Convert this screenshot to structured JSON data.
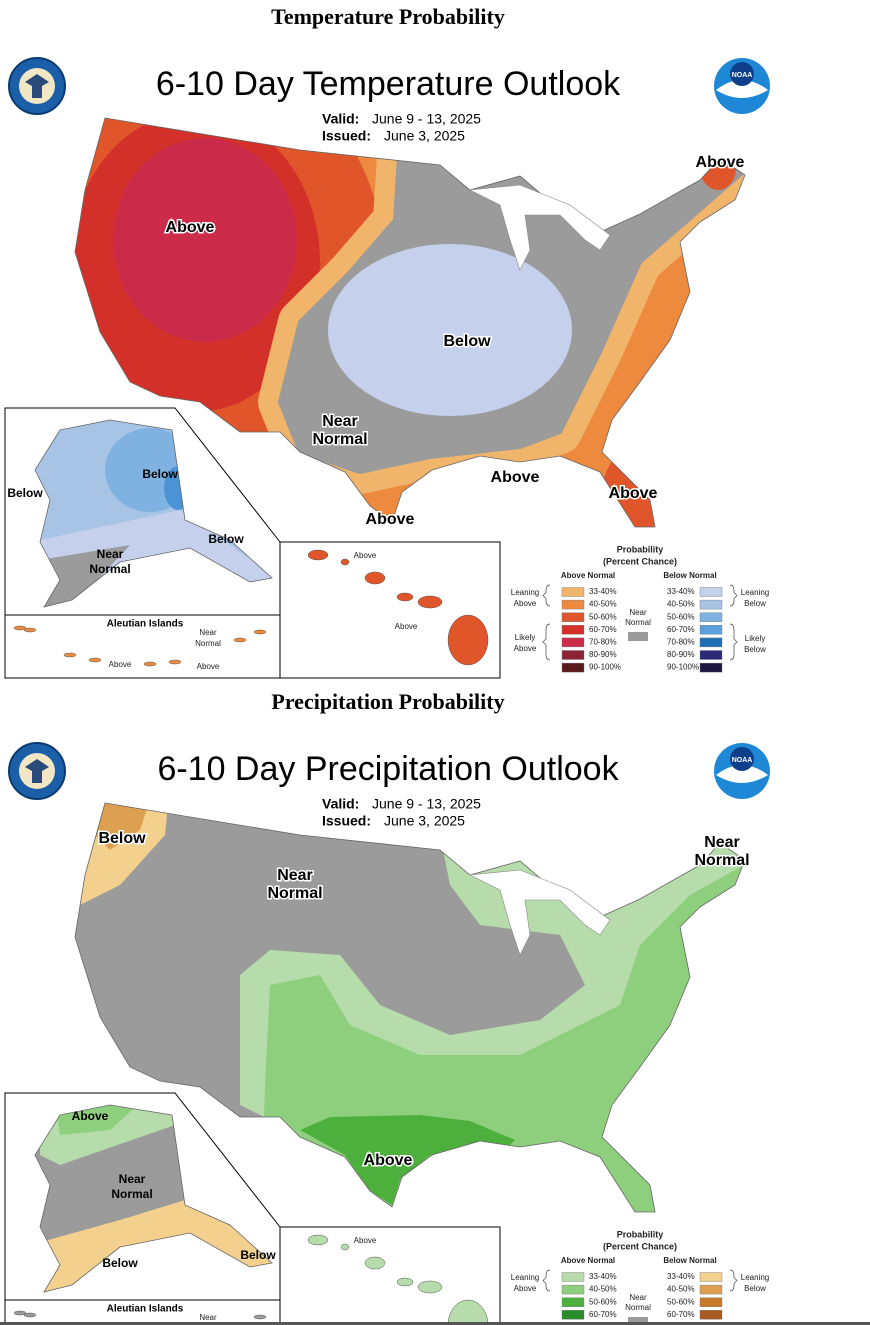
{
  "sections": [
    {
      "heading": "Temperature Probability",
      "title": "6-10 Day Temperature Outlook",
      "valid_label": "Valid:",
      "valid": "June 9 - 13, 2025",
      "issued_label": "Issued:",
      "issued": "June 3, 2025",
      "noaa_logo": "NOAA",
      "main_labels": [
        [
          "Above"
        ],
        [
          "Below"
        ],
        [
          "Near",
          "Normal"
        ],
        [
          "Above"
        ],
        [
          "Above"
        ],
        [
          "Above"
        ],
        [
          "Above"
        ]
      ],
      "alaska_labels": [
        [
          "Below"
        ],
        [
          "Below"
        ],
        [
          "Below"
        ],
        [
          "Near",
          "Normal"
        ]
      ],
      "aleutian_title": "Aleutian Islands",
      "aleutian_labels": [
        [
          "Near",
          "Normal"
        ],
        [
          "Above"
        ],
        [
          "Above"
        ]
      ],
      "hawaii_labels": [
        [
          "Above"
        ],
        [
          "Above"
        ]
      ],
      "legend": {
        "title": [
          "Probability",
          "(Percent Chance)"
        ],
        "above_header": "Above Normal",
        "below_header": "Below Normal",
        "leaning_above": [
          "Leaning",
          "Above"
        ],
        "likely_above": [
          "Likely",
          "Above"
        ],
        "near": [
          "Near",
          "Normal"
        ],
        "leaning_below": [
          "Leaning",
          "Below"
        ],
        "likely_below": [
          "Likely",
          "Below"
        ],
        "above_bins": [
          "33-40%",
          "40-50%",
          "50-60%",
          "60-70%",
          "70-80%",
          "80-90%",
          "90-100%"
        ],
        "below_bins": [
          "33-40%",
          "40-50%",
          "50-60%",
          "60-70%",
          "70-80%",
          "80-90%",
          "90-100%"
        ]
      }
    },
    {
      "heading": "Precipitation Probability",
      "title": "6-10 Day Precipitation Outlook",
      "valid_label": "Valid:",
      "valid": "June 9 - 13, 2025",
      "issued_label": "Issued:",
      "issued": "June 3, 2025",
      "noaa_logo": "NOAA",
      "main_labels": [
        [
          "Below"
        ],
        [
          "Near",
          "Normal"
        ],
        [
          "Near",
          "Normal"
        ],
        [
          "Above"
        ]
      ],
      "alaska_labels": [
        [
          "Above"
        ],
        [
          "Near",
          "Normal"
        ],
        [
          "Below"
        ],
        [
          "Below"
        ]
      ],
      "aleutian_title": "Aleutian Islands",
      "aleutian_labels": [
        [
          "Near"
        ]
      ],
      "hawaii_labels": [
        [
          "Above"
        ]
      ],
      "legend": {
        "title": [
          "Probability",
          "(Percent Chance)"
        ],
        "above_header": "Above Normal",
        "below_header": "Below Normal",
        "leaning_above": [
          "Leaning",
          "Above"
        ],
        "near": [
          "Near",
          "Normal"
        ],
        "leaning_below": [
          "Leaning",
          "Below"
        ],
        "above_bins": [
          "33-40%",
          "40-50%",
          "50-60%",
          "60-70%"
        ],
        "below_bins": [
          "33-40%",
          "40-50%",
          "50-60%",
          "60-70%"
        ]
      }
    }
  ]
}
